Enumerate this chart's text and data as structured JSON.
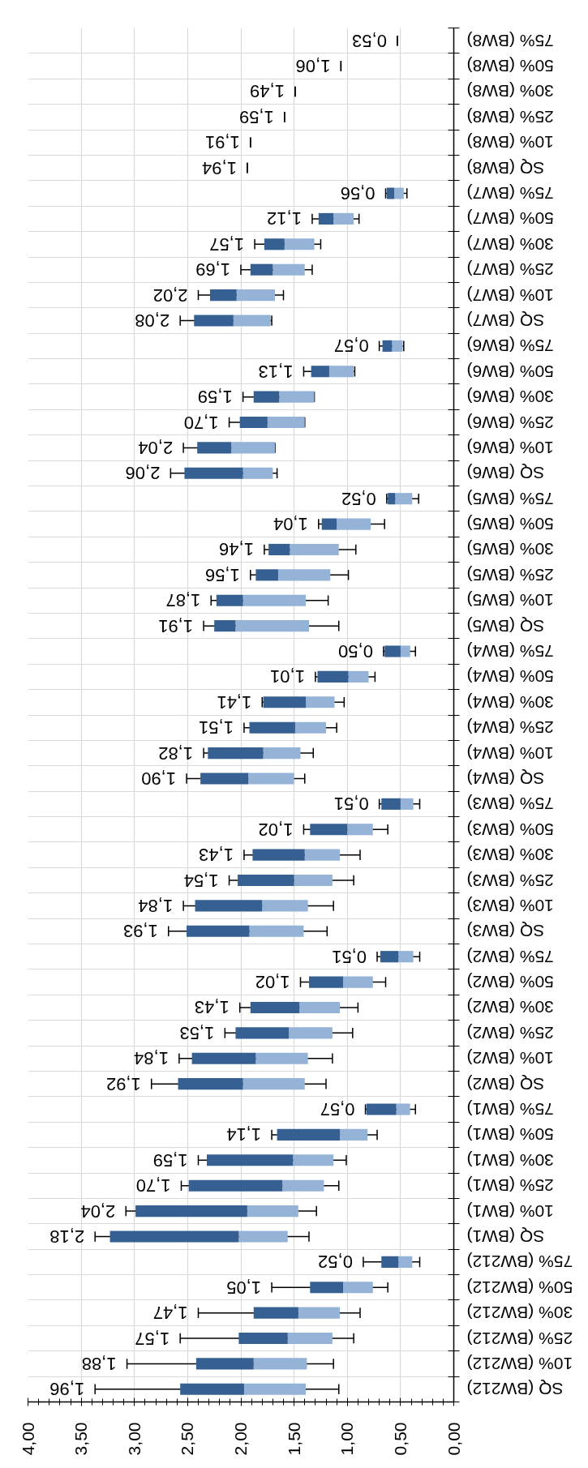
{
  "chart_data": {
    "type": "box",
    "orientation": "horizontal",
    "categories": [
      "75% (BW8)",
      "50% (BW8)",
      "30% (BW8)",
      "25% (BW8)",
      "10% (BW8)",
      "SQ (BW8)",
      "75% (BW7)",
      "50% (BW7)",
      "30% (BW7)",
      "25% (BW7)",
      "10% (BW7)",
      "SQ (BW7)",
      "75% (BW6)",
      "50% (BW6)",
      "30% (BW6)",
      "25% (BW6)",
      "10% (BW6)",
      "SQ (BW6)",
      "75% (BW5)",
      "50% (BW5)",
      "30% (BW5)",
      "25% (BW5)",
      "10% (BW5)",
      "SQ (BW5)",
      "75% (BW4)",
      "50% (BW4)",
      "30% (BW4)",
      "25% (BW4)",
      "10% (BW4)",
      "SQ (BW4)",
      "75% (BW3)",
      "50% (BW3)",
      "30% (BW3)",
      "25% (BW3)",
      "10% (BW3)",
      "SQ (BW3)",
      "75% (BW2)",
      "50% (BW2)",
      "30% (BW2)",
      "25% (BW2)",
      "10% (BW2)",
      "SQ (BW2)",
      "75% (BW1)",
      "50% (BW1)",
      "30% (BW1)",
      "25% (BW1)",
      "10% (BW1)",
      "SQ (BW1)",
      "75% (BW212)",
      "50% (BW212)",
      "30% (BW212)",
      "25% (BW212)",
      "10% (BW212)",
      "SQ (BW212)"
    ],
    "boxes": [
      {
        "low": 0.53,
        "q1": 0.53,
        "median": 0.53,
        "q3": 0.53,
        "high": 0.53
      },
      {
        "low": 1.06,
        "q1": 1.06,
        "median": 1.06,
        "q3": 1.06,
        "high": 1.06
      },
      {
        "low": 1.49,
        "q1": 1.49,
        "median": 1.49,
        "q3": 1.49,
        "high": 1.49
      },
      {
        "low": 1.59,
        "q1": 1.59,
        "median": 1.59,
        "q3": 1.59,
        "high": 1.59
      },
      {
        "low": 1.91,
        "q1": 1.91,
        "median": 1.91,
        "q3": 1.91,
        "high": 1.91
      },
      {
        "low": 1.94,
        "q1": 1.94,
        "median": 1.94,
        "q3": 1.94,
        "high": 1.94
      },
      {
        "low": 0.44,
        "q1": 0.47,
        "median": 0.56,
        "q3": 0.63,
        "high": 0.64
      },
      {
        "low": 0.89,
        "q1": 0.94,
        "median": 1.13,
        "q3": 1.27,
        "high": 1.33
      },
      {
        "low": 1.25,
        "q1": 1.31,
        "median": 1.59,
        "q3": 1.78,
        "high": 1.87
      },
      {
        "low": 1.33,
        "q1": 1.4,
        "median": 1.7,
        "q3": 1.91,
        "high": 2.0
      },
      {
        "low": 1.6,
        "q1": 1.68,
        "median": 2.04,
        "q3": 2.29,
        "high": 2.4
      },
      {
        "low": 1.71,
        "q1": 1.72,
        "median": 2.07,
        "q3": 2.44,
        "high": 2.57
      },
      {
        "low": 0.47,
        "q1": 0.48,
        "median": 0.58,
        "q3": 0.67,
        "high": 0.7
      },
      {
        "low": 0.93,
        "q1": 0.94,
        "median": 1.17,
        "q3": 1.34,
        "high": 1.41
      },
      {
        "low": 1.31,
        "q1": 1.31,
        "median": 1.64,
        "q3": 1.88,
        "high": 1.98
      },
      {
        "low": 1.4,
        "q1": 1.4,
        "median": 1.75,
        "q3": 2.01,
        "high": 2.11
      },
      {
        "low": 1.68,
        "q1": 1.68,
        "median": 2.09,
        "q3": 2.41,
        "high": 2.54
      },
      {
        "low": 1.66,
        "q1": 1.7,
        "median": 1.98,
        "q3": 2.53,
        "high": 2.66
      },
      {
        "low": 0.33,
        "q1": 0.39,
        "median": 0.55,
        "q3": 0.62,
        "high": 0.63
      },
      {
        "low": 0.65,
        "q1": 0.78,
        "median": 1.1,
        "q3": 1.24,
        "high": 1.27
      },
      {
        "low": 0.92,
        "q1": 1.08,
        "median": 1.54,
        "q3": 1.74,
        "high": 1.78
      },
      {
        "low": 0.99,
        "q1": 1.16,
        "median": 1.65,
        "q3": 1.86,
        "high": 1.91
      },
      {
        "low": 1.18,
        "q1": 1.39,
        "median": 1.98,
        "q3": 2.23,
        "high": 2.28
      },
      {
        "low": 1.08,
        "q1": 1.36,
        "median": 2.05,
        "q3": 2.25,
        "high": 2.35
      },
      {
        "low": 0.36,
        "q1": 0.41,
        "median": 0.5,
        "q3": 0.65,
        "high": 0.66
      },
      {
        "low": 0.74,
        "q1": 0.8,
        "median": 0.99,
        "q3": 1.28,
        "high": 1.3
      },
      {
        "low": 1.03,
        "q1": 1.12,
        "median": 1.39,
        "q3": 1.79,
        "high": 1.8
      },
      {
        "low": 1.1,
        "q1": 1.2,
        "median": 1.49,
        "q3": 1.92,
        "high": 1.97
      },
      {
        "low": 1.32,
        "q1": 1.44,
        "median": 1.79,
        "q3": 2.31,
        "high": 2.35
      },
      {
        "low": 1.4,
        "q1": 1.5,
        "median": 1.93,
        "q3": 2.38,
        "high": 2.51
      },
      {
        "low": 0.32,
        "q1": 0.38,
        "median": 0.5,
        "q3": 0.68,
        "high": 0.7
      },
      {
        "low": 0.62,
        "q1": 0.76,
        "median": 1.0,
        "q3": 1.35,
        "high": 1.41
      },
      {
        "low": 0.88,
        "q1": 1.07,
        "median": 1.4,
        "q3": 1.89,
        "high": 1.97
      },
      {
        "low": 0.94,
        "q1": 1.14,
        "median": 1.5,
        "q3": 2.03,
        "high": 2.11
      },
      {
        "low": 1.13,
        "q1": 1.37,
        "median": 1.8,
        "q3": 2.43,
        "high": 2.54
      },
      {
        "low": 1.19,
        "q1": 1.41,
        "median": 1.92,
        "q3": 2.51,
        "high": 2.68
      },
      {
        "low": 0.32,
        "q1": 0.38,
        "median": 0.52,
        "q3": 0.69,
        "high": 0.72
      },
      {
        "low": 0.64,
        "q1": 0.76,
        "median": 1.04,
        "q3": 1.36,
        "high": 1.44
      },
      {
        "low": 0.9,
        "q1": 1.07,
        "median": 1.45,
        "q3": 1.91,
        "high": 2.01
      },
      {
        "low": 0.95,
        "q1": 1.14,
        "median": 1.55,
        "q3": 2.05,
        "high": 2.15
      },
      {
        "low": 1.14,
        "q1": 1.37,
        "median": 1.86,
        "q3": 2.46,
        "high": 2.58
      },
      {
        "low": 1.2,
        "q1": 1.4,
        "median": 1.98,
        "q3": 2.59,
        "high": 2.84
      },
      {
        "low": 0.36,
        "q1": 0.41,
        "median": 0.54,
        "q3": 0.82,
        "high": 0.83
      },
      {
        "low": 0.72,
        "q1": 0.81,
        "median": 1.07,
        "q3": 1.66,
        "high": 1.71
      },
      {
        "low": 1.01,
        "q1": 1.13,
        "median": 1.51,
        "q3": 2.32,
        "high": 2.4
      },
      {
        "low": 1.08,
        "q1": 1.22,
        "median": 1.61,
        "q3": 2.49,
        "high": 2.56
      },
      {
        "low": 1.29,
        "q1": 1.46,
        "median": 1.94,
        "q3": 2.99,
        "high": 3.08
      },
      {
        "low": 1.36,
        "q1": 1.56,
        "median": 2.02,
        "q3": 3.23,
        "high": 3.37
      },
      {
        "low": 0.32,
        "q1": 0.39,
        "median": 0.52,
        "q3": 0.68,
        "high": 0.85
      },
      {
        "low": 0.62,
        "q1": 0.76,
        "median": 1.04,
        "q3": 1.35,
        "high": 1.71
      },
      {
        "low": 0.88,
        "q1": 1.07,
        "median": 1.46,
        "q3": 1.88,
        "high": 2.4
      },
      {
        "low": 0.94,
        "q1": 1.14,
        "median": 1.56,
        "q3": 2.02,
        "high": 2.57
      },
      {
        "low": 1.13,
        "q1": 1.38,
        "median": 1.88,
        "q3": 2.42,
        "high": 3.07
      },
      {
        "low": 1.08,
        "q1": 1.39,
        "median": 1.97,
        "q3": 2.57,
        "high": 3.37
      }
    ],
    "value_labels": [
      "0,53",
      "1,06",
      "1,49",
      "1,59",
      "1,91",
      "1,94",
      "0,56",
      "1,12",
      "1,57",
      "1,69",
      "2,02",
      "2,08",
      "0,57",
      "1,13",
      "1,59",
      "1,70",
      "2,04",
      "2,06",
      "0,52",
      "1,04",
      "1,46",
      "1,56",
      "1,87",
      "1,91",
      "0,50",
      "1,01",
      "1,41",
      "1,51",
      "1,82",
      "1,90",
      "0,51",
      "1,02",
      "1,43",
      "1,54",
      "1,84",
      "1,93",
      "0,51",
      "1,02",
      "1,43",
      "1,53",
      "1,84",
      "1,92",
      "0,57",
      "1,14",
      "1,59",
      "1,70",
      "2,04",
      "2,18",
      "0,52",
      "1,05",
      "1,47",
      "1,57",
      "1,88",
      "1,96"
    ],
    "colors": [
      [
        "#95b3d7",
        "#376092"
      ],
      [
        "#95b3d7",
        "#376092"
      ],
      [
        "#95b3d7",
        "#376092"
      ],
      [
        "#95b3d7",
        "#376092"
      ],
      [
        "#95b3d7",
        "#376092"
      ],
      [
        "#95b3d7",
        "#376092"
      ],
      [
        "#95b3d7",
        "#376092"
      ],
      [
        "#95b3d7",
        "#376092"
      ],
      [
        "#95b3d7",
        "#376092"
      ],
      [
        "#95b3d7",
        "#376092"
      ],
      [
        "#95b3d7",
        "#376092"
      ],
      [
        "#95b3d7",
        "#376092"
      ],
      [
        "#95b3d7",
        "#376092"
      ],
      [
        "#95b3d7",
        "#376092"
      ],
      [
        "#95b3d7",
        "#376092"
      ],
      [
        "#95b3d7",
        "#376092"
      ],
      [
        "#95b3d7",
        "#376092"
      ],
      [
        "#95b3d7",
        "#376092"
      ],
      [
        "#95b3d7",
        "#376092"
      ],
      [
        "#95b3d7",
        "#376092"
      ],
      [
        "#95b3d7",
        "#376092"
      ],
      [
        "#95b3d7",
        "#376092"
      ],
      [
        "#95b3d7",
        "#376092"
      ],
      [
        "#95b3d7",
        "#376092"
      ],
      [
        "#95b3d7",
        "#376092"
      ],
      [
        "#95b3d7",
        "#376092"
      ],
      [
        "#95b3d7",
        "#376092"
      ],
      [
        "#95b3d7",
        "#376092"
      ],
      [
        "#95b3d7",
        "#376092"
      ],
      [
        "#95b3d7",
        "#376092"
      ],
      [
        "#95b3d7",
        "#376092"
      ],
      [
        "#95b3d7",
        "#376092"
      ],
      [
        "#95b3d7",
        "#376092"
      ],
      [
        "#95b3d7",
        "#376092"
      ],
      [
        "#95b3d7",
        "#376092"
      ],
      [
        "#95b3d7",
        "#376092"
      ],
      [
        "#95b3d7",
        "#376092"
      ],
      [
        "#95b3d7",
        "#376092"
      ],
      [
        "#95b3d7",
        "#376092"
      ],
      [
        "#95b3d7",
        "#376092"
      ],
      [
        "#95b3d7",
        "#376092"
      ],
      [
        "#95b3d7",
        "#376092"
      ],
      [
        "#95b3d7",
        "#376092"
      ],
      [
        "#95b3d7",
        "#376092"
      ],
      [
        "#95b3d7",
        "#376092"
      ],
      [
        "#95b3d7",
        "#376092"
      ],
      [
        "#95b3d7",
        "#376092"
      ],
      [
        "#95b3d7",
        "#376092"
      ],
      [
        "#95b3d7",
        "#376092"
      ],
      [
        "#95b3d7",
        "#376092"
      ],
      [
        "#95b3d7",
        "#376092"
      ],
      [
        "#95b3d7",
        "#376092"
      ],
      [
        "#95b3d7",
        "#376092"
      ],
      [
        "#95b3d7",
        "#376092"
      ]
    ],
    "xlim": [
      4,
      0
    ],
    "xticks": [
      {
        "value": 4,
        "label": "4,00"
      },
      {
        "value": 3.5,
        "label": "3,50"
      },
      {
        "value": 3,
        "label": "3,00"
      },
      {
        "value": 2.5,
        "label": "2,50"
      },
      {
        "value": 2,
        "label": "2,00"
      },
      {
        "value": 1.5,
        "label": "1,50"
      },
      {
        "value": 1,
        "label": "1,00"
      },
      {
        "value": 0.5,
        "label": "0,50"
      },
      {
        "value": 0,
        "label": "0,00"
      }
    ],
    "grid": true
  }
}
